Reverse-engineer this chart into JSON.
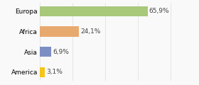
{
  "categories": [
    "America",
    "Asia",
    "Africa",
    "Europa"
  ],
  "values": [
    3.1,
    6.9,
    24.1,
    65.9
  ],
  "bar_colors": [
    "#f5c518",
    "#7b8fc4",
    "#e8a96e",
    "#a8c87a"
  ],
  "labels": [
    "3,1%",
    "6,9%",
    "24,1%",
    "65,9%"
  ],
  "xlim": [
    0,
    95
  ],
  "background_color": "#f9f9f9",
  "bar_height": 0.5,
  "label_fontsize": 6.5,
  "tick_fontsize": 6.5,
  "figsize": [
    2.8,
    1.2
  ],
  "dpi": 100
}
